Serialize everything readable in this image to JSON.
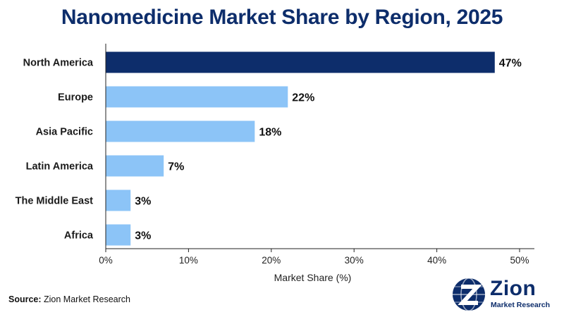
{
  "chart_data": {
    "type": "bar",
    "orientation": "horizontal",
    "title": "Nanomedicine Market Share by Region, 2025",
    "xlabel": "Market Share (%)",
    "ylabel": "",
    "categories": [
      "North America",
      "Europe",
      "Asia Pacific",
      "Latin America",
      "The Middle East",
      "Africa"
    ],
    "values": [
      47,
      22,
      18,
      7,
      3,
      3
    ],
    "value_labels": [
      "47%",
      "22%",
      "18%",
      "7%",
      "3%",
      "3%"
    ],
    "highlight_index": 0,
    "xlim": [
      0,
      52
    ],
    "xticks": [
      0,
      10,
      20,
      30,
      40,
      50
    ],
    "xtick_labels": [
      "0%",
      "10%",
      "20%",
      "30%",
      "40%",
      "50%"
    ],
    "grid": false,
    "colors": {
      "highlight": "#0d2d6b",
      "bar": "#8cc4f7",
      "title": "#0d2d6b"
    }
  },
  "source": {
    "label": "Source:",
    "text": " Zion Market Research"
  },
  "logo": {
    "name": "Zion",
    "subtitle": "Market Research",
    "icon": "zion-globe-icon"
  }
}
